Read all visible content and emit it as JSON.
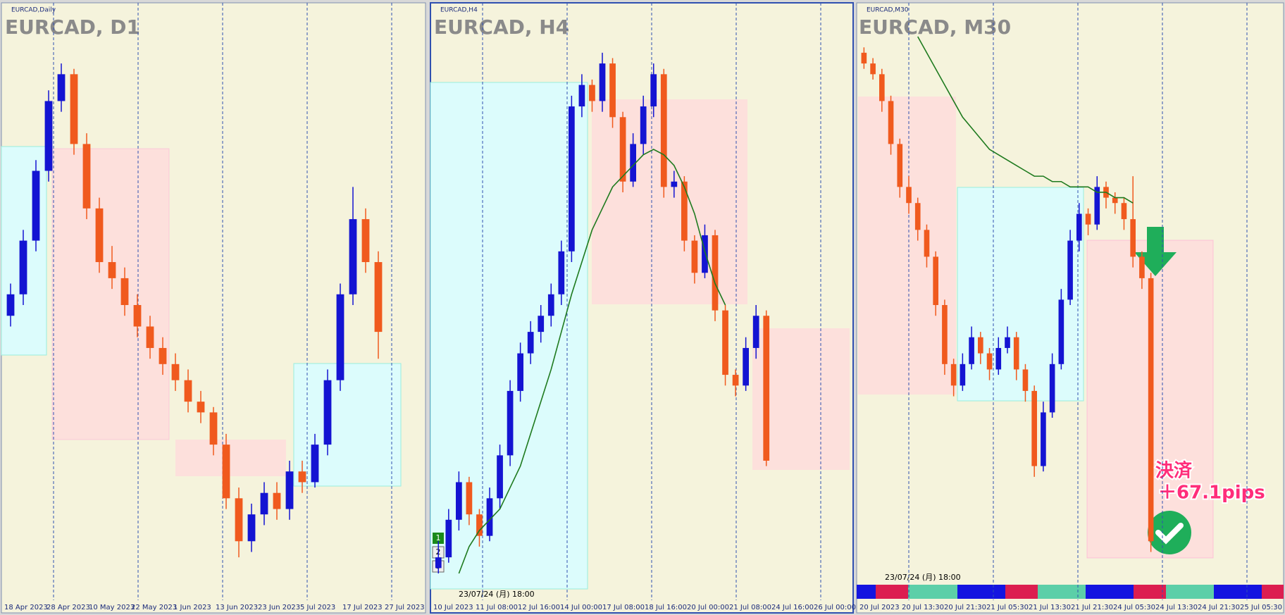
{
  "up_color": "#1414d2",
  "down_color": "#f05a1e",
  "ma_color": "#1e7a1e",
  "panels": [
    {
      "symbol": "EURCAD,Daily",
      "title": "EURCAD, D1",
      "ylim": [
        0,
        100
      ],
      "x_labels": [
        "18 Apr 2023",
        "28 Apr 2023",
        "10 May 2023",
        "22 May 2023",
        "1 Jun 2023",
        "13 Jun 2023",
        "23 Jun 2023",
        "5 Jul 2023",
        "17 Jul 2023",
        "27 Jul 2023"
      ],
      "candles": [
        [
          48,
          54,
          46,
          52
        ],
        [
          52,
          64,
          50,
          62
        ],
        [
          62,
          77,
          60,
          75
        ],
        [
          75,
          90,
          73,
          88
        ],
        [
          88,
          95,
          86,
          93
        ],
        [
          93,
          94,
          78,
          80
        ],
        [
          80,
          82,
          66,
          68
        ],
        [
          68,
          70,
          56,
          58
        ],
        [
          58,
          61,
          53,
          55
        ],
        [
          55,
          57,
          48,
          50
        ],
        [
          50,
          52,
          44,
          46
        ],
        [
          46,
          48,
          40,
          42
        ],
        [
          42,
          44,
          37,
          39
        ],
        [
          39,
          41,
          34,
          36
        ],
        [
          36,
          38,
          30,
          32
        ],
        [
          32,
          34,
          28,
          30
        ],
        [
          30,
          31,
          22,
          24
        ],
        [
          24,
          26,
          12,
          14
        ],
        [
          14,
          16,
          3,
          6
        ],
        [
          6,
          13,
          4,
          11
        ],
        [
          11,
          17,
          9,
          15
        ],
        [
          15,
          17,
          10,
          12
        ],
        [
          12,
          21,
          10,
          19
        ],
        [
          19,
          21,
          15,
          17
        ],
        [
          17,
          26,
          16,
          24
        ],
        [
          24,
          38,
          22,
          36
        ],
        [
          36,
          54,
          34,
          52
        ],
        [
          52,
          72,
          50,
          66
        ],
        [
          66,
          68,
          56,
          58
        ],
        [
          58,
          60,
          40,
          45
        ]
      ]
    },
    {
      "symbol": "EURCAD,H4",
      "title": "EURCAD, H4",
      "ylim": [
        0,
        100
      ],
      "x_labels": [
        "10 Jul 2023",
        "11 Jul 08:00",
        "12 Jul 16:00",
        "14 Jul 00:00",
        "17 Jul 08:00",
        "18 Jul 16:00",
        "20 Jul 00:00",
        "21 Jul 08:00",
        "24 Jul 16:00",
        "26 Jul 00:00"
      ],
      "candles": [
        [
          1,
          6,
          0,
          3
        ],
        [
          3,
          12,
          2,
          10
        ],
        [
          10,
          19,
          8,
          17
        ],
        [
          17,
          18,
          9,
          11
        ],
        [
          11,
          12,
          5,
          7
        ],
        [
          7,
          16,
          6,
          14
        ],
        [
          14,
          24,
          12,
          22
        ],
        [
          22,
          36,
          20,
          34
        ],
        [
          34,
          43,
          32,
          41
        ],
        [
          41,
          47,
          39,
          45
        ],
        [
          45,
          50,
          43,
          48
        ],
        [
          48,
          54,
          46,
          52
        ],
        [
          52,
          62,
          50,
          60
        ],
        [
          60,
          89,
          58,
          87
        ],
        [
          87,
          93,
          85,
          91
        ],
        [
          91,
          92,
          86,
          88
        ],
        [
          88,
          97,
          86,
          95
        ],
        [
          95,
          96,
          83,
          85
        ],
        [
          85,
          86,
          71,
          73
        ],
        [
          73,
          82,
          72,
          80
        ],
        [
          80,
          89,
          78,
          87
        ],
        [
          87,
          95,
          85,
          93
        ],
        [
          93,
          94,
          70,
          72
        ],
        [
          72,
          75,
          70,
          73
        ],
        [
          73,
          74,
          60,
          62
        ],
        [
          62,
          63,
          54,
          56
        ],
        [
          56,
          65,
          55,
          63
        ],
        [
          63,
          64,
          47,
          49
        ],
        [
          49,
          50,
          35,
          37
        ],
        [
          37,
          38,
          33,
          35
        ],
        [
          35,
          44,
          34,
          42
        ],
        [
          42,
          50,
          40,
          48
        ],
        [
          48,
          49,
          20,
          21
        ]
      ],
      "ma": [
        null,
        null,
        0,
        5,
        8,
        10,
        12,
        16,
        20,
        26,
        32,
        38,
        45,
        52,
        58,
        64,
        68,
        72,
        74,
        76,
        78,
        79,
        78,
        76,
        72,
        67,
        60,
        54,
        50,
        null,
        null,
        null,
        null
      ],
      "buttons": [
        "1",
        "2",
        "3"
      ],
      "timestamp": "23/07/24 (月) 18:00"
    },
    {
      "symbol": "EURCAD,M30",
      "title": "EURCAD, M30",
      "ylim": [
        0,
        100
      ],
      "x_labels": [
        "20 Jul 2023",
        "20 Jul 13:30",
        "20 Jul 21:30",
        "21 Jul 05:30",
        "21 Jul 13:30",
        "21 Jul 21:30",
        "24 Jul 05:30",
        "24 Jul 13:30",
        "24 Jul 21:30",
        "25 Jul 05:30"
      ],
      "candles": [
        [
          97,
          98,
          94,
          95
        ],
        [
          95,
          96,
          92,
          93
        ],
        [
          93,
          94,
          86,
          88
        ],
        [
          88,
          89,
          78,
          80
        ],
        [
          80,
          81,
          70,
          72
        ],
        [
          72,
          74,
          67,
          69
        ],
        [
          69,
          70,
          62,
          64
        ],
        [
          64,
          65,
          57,
          59
        ],
        [
          59,
          60,
          48,
          50
        ],
        [
          50,
          51,
          37,
          39
        ],
        [
          39,
          40,
          33,
          35
        ],
        [
          35,
          41,
          34,
          39
        ],
        [
          39,
          46,
          38,
          44
        ],
        [
          44,
          45,
          39,
          41
        ],
        [
          41,
          42,
          36,
          38
        ],
        [
          38,
          44,
          37,
          42
        ],
        [
          42,
          46,
          41,
          44
        ],
        [
          44,
          45,
          36,
          38
        ],
        [
          38,
          39,
          32,
          34
        ],
        [
          34,
          35,
          18,
          20
        ],
        [
          20,
          32,
          19,
          30
        ],
        [
          30,
          41,
          29,
          39
        ],
        [
          39,
          53,
          38,
          51
        ],
        [
          51,
          64,
          50,
          62
        ],
        [
          62,
          69,
          60,
          67
        ],
        [
          67,
          68,
          63,
          65
        ],
        [
          65,
          74,
          64,
          72
        ],
        [
          72,
          73,
          68,
          70
        ],
        [
          70,
          71,
          67,
          69
        ],
        [
          69,
          70,
          64,
          66
        ],
        [
          66,
          74,
          57,
          59
        ],
        [
          59,
          60,
          53,
          55
        ],
        [
          55,
          56,
          4,
          6
        ]
      ],
      "ma": [
        null,
        null,
        null,
        null,
        null,
        null,
        100,
        97,
        94,
        91,
        88,
        85,
        83,
        81,
        79,
        78,
        77,
        76,
        75,
        74,
        74,
        73,
        73,
        72,
        72,
        72,
        71,
        71,
        70,
        70,
        69,
        null,
        null
      ],
      "timestamp": "23/07/24 (月) 18:00",
      "annotation": {
        "line1": "決済",
        "line2": "＋67.1pips"
      }
    }
  ]
}
